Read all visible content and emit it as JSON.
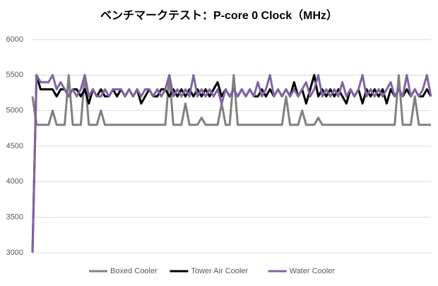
{
  "chart_data": {
    "type": "line",
    "title": "ベンチマークテスト：P-core 0 Clock（MHz）",
    "ylim": [
      3000,
      6000
    ],
    "yticks": [
      3000,
      3500,
      4000,
      4500,
      5000,
      5500,
      6000
    ],
    "grid": true,
    "legend": "bottom",
    "series": [
      {
        "name": "Boxed Cooler",
        "color": "#808080",
        "values": [
          5200,
          4800,
          4800,
          4800,
          4800,
          5000,
          4800,
          4800,
          4800,
          5500,
          4800,
          4800,
          4800,
          5500,
          4800,
          4800,
          4800,
          5000,
          4800,
          4800,
          4800,
          4800,
          4800,
          4800,
          4800,
          4800,
          4800,
          4800,
          4800,
          4800,
          4800,
          4800,
          4800,
          4800,
          5500,
          4800,
          4800,
          4800,
          5100,
          4800,
          4800,
          4800,
          4900,
          4800,
          4800,
          4800,
          4800,
          5100,
          4800,
          4800,
          5500,
          4800,
          4800,
          4800,
          4800,
          4800,
          4800,
          4800,
          4800,
          4800,
          4800,
          4800,
          4800,
          5200,
          4800,
          4800,
          4800,
          5000,
          4800,
          4800,
          4800,
          4900,
          4800,
          4800,
          4800,
          4800,
          4800,
          4800,
          4800,
          4800,
          4800,
          4800,
          4800,
          4800,
          4800,
          4800,
          4800,
          4800,
          4800,
          4800,
          4800,
          5500,
          4800,
          4800,
          4800,
          5200,
          4800,
          4800,
          4800,
          4800
        ]
      },
      {
        "name": "Tower Air Cooler",
        "color": "#000000",
        "values": [
          3000,
          5500,
          5300,
          5300,
          5300,
          5300,
          5200,
          5300,
          5300,
          5200,
          5300,
          5300,
          5200,
          5300,
          5100,
          5300,
          5200,
          5300,
          5200,
          5200,
          5300,
          5200,
          5300,
          5200,
          5300,
          5200,
          5300,
          5100,
          5200,
          5300,
          5200,
          5200,
          5300,
          5300,
          5200,
          5300,
          5200,
          5300,
          5200,
          5300,
          5200,
          5300,
          5200,
          5300,
          5200,
          5300,
          5400,
          5200,
          5300,
          5200,
          5300,
          5200,
          5300,
          5200,
          5300,
          5200,
          5200,
          5300,
          5200,
          5300,
          5200,
          5300,
          5200,
          5300,
          5200,
          5400,
          5200,
          5300,
          5100,
          5300,
          5500,
          5200,
          5300,
          5200,
          5300,
          5200,
          5300,
          5200,
          5100,
          5300,
          5200,
          5300,
          5100,
          5300,
          5200,
          5300,
          5200,
          5300,
          5100,
          5300,
          5200,
          5300,
          5200,
          5300,
          5200,
          5300,
          5200,
          5200,
          5300,
          5200
        ]
      },
      {
        "name": "Water Cooler",
        "color": "#8064a2",
        "values": [
          3000,
          5500,
          5400,
          5400,
          5400,
          5500,
          5300,
          5400,
          5300,
          5200,
          5300,
          5200,
          5300,
          5500,
          5200,
          5300,
          5200,
          5200,
          5300,
          5200,
          5300,
          5300,
          5300,
          5200,
          5300,
          5200,
          5300,
          5200,
          5300,
          5300,
          5200,
          5300,
          5200,
          5300,
          5500,
          5200,
          5300,
          5200,
          5300,
          5200,
          5500,
          5200,
          5300,
          5200,
          5300,
          5200,
          5300,
          5100,
          5300,
          5200,
          5300,
          5200,
          5300,
          5200,
          5300,
          5200,
          5400,
          5200,
          5300,
          5500,
          5200,
          5300,
          5200,
          5300,
          5200,
          5300,
          5200,
          5300,
          5400,
          5200,
          5300,
          5500,
          5200,
          5300,
          5200,
          5300,
          5200,
          5400,
          5200,
          5300,
          5200,
          5300,
          5500,
          5200,
          5300,
          5200,
          5300,
          5200,
          5300,
          5400,
          5200,
          5300,
          5200,
          5500,
          5200,
          5300,
          5200,
          5300,
          5500,
          5200
        ]
      }
    ]
  }
}
